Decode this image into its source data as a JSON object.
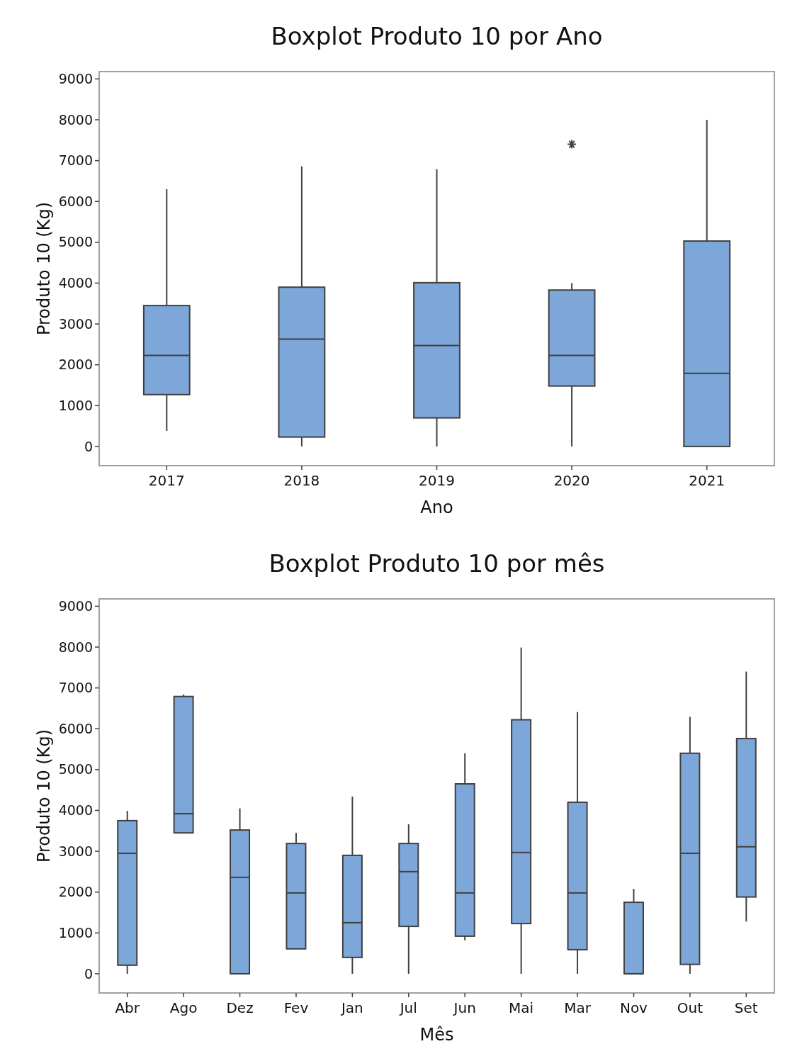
{
  "chart_data": [
    {
      "type": "box",
      "title": "Boxplot Produto 10 por Ano",
      "xlabel": "Ano",
      "ylabel": "Produto 10 (Kg)",
      "categories": [
        "2017",
        "2018",
        "2019",
        "2020",
        "2021"
      ],
      "color": "#7da7d9",
      "ylim": [
        -470,
        9180
      ],
      "yticks": [
        0,
        1000,
        2000,
        3000,
        4000,
        5000,
        6000,
        7000,
        8000,
        9000
      ],
      "grid": false,
      "boxes": [
        {
          "low": 380,
          "q1": 1270,
          "median": 2230,
          "q3": 3450,
          "high": 6300
        },
        {
          "low": 0,
          "q1": 230,
          "median": 2630,
          "q3": 3900,
          "high": 6860
        },
        {
          "low": 0,
          "q1": 700,
          "median": 2470,
          "q3": 4010,
          "high": 6790
        },
        {
          "low": 0,
          "q1": 1480,
          "median": 2230,
          "q3": 3830,
          "high": 4000,
          "outliers": [
            7400
          ]
        },
        {
          "low": 0,
          "q1": 0,
          "median": 1790,
          "q3": 5030,
          "high": 8000
        }
      ]
    },
    {
      "type": "box",
      "title": "Boxplot Produto 10 por mês",
      "xlabel": "Mês",
      "ylabel": "Produto 10 (Kg)",
      "categories": [
        "Abr",
        "Ago",
        "Dez",
        "Fev",
        "Jan",
        "Jul",
        "Jun",
        "Mai",
        "Mar",
        "Nov",
        "Out",
        "Set"
      ],
      "color": "#7da7d9",
      "ylim": [
        -470,
        9180
      ],
      "yticks": [
        0,
        1000,
        2000,
        3000,
        4000,
        5000,
        6000,
        7000,
        8000,
        9000
      ],
      "grid": false,
      "boxes": [
        {
          "low": 0,
          "q1": 210,
          "median": 2950,
          "q3": 3750,
          "high": 3990
        },
        {
          "low": 3450,
          "q1": 3450,
          "median": 3920,
          "q3": 6790,
          "high": 6840
        },
        {
          "low": 0,
          "q1": 0,
          "median": 2360,
          "q3": 3520,
          "high": 4050
        },
        {
          "low": 610,
          "q1": 610,
          "median": 1980,
          "q3": 3190,
          "high": 3450
        },
        {
          "low": 0,
          "q1": 400,
          "median": 1250,
          "q3": 2900,
          "high": 4340
        },
        {
          "low": 0,
          "q1": 1160,
          "median": 2500,
          "q3": 3190,
          "high": 3660
        },
        {
          "low": 820,
          "q1": 920,
          "median": 1980,
          "q3": 4650,
          "high": 5400
        },
        {
          "low": 0,
          "q1": 1230,
          "median": 2970,
          "q3": 6220,
          "high": 7990
        },
        {
          "low": 0,
          "q1": 590,
          "median": 1980,
          "q3": 4200,
          "high": 6410
        },
        {
          "low": 0,
          "q1": 0,
          "median": 0,
          "q3": 1750,
          "high": 2080
        },
        {
          "low": 0,
          "q1": 230,
          "median": 2950,
          "q3": 5400,
          "high": 6290
        },
        {
          "low": 1280,
          "q1": 1880,
          "median": 3110,
          "q3": 5760,
          "high": 7400
        }
      ]
    }
  ]
}
